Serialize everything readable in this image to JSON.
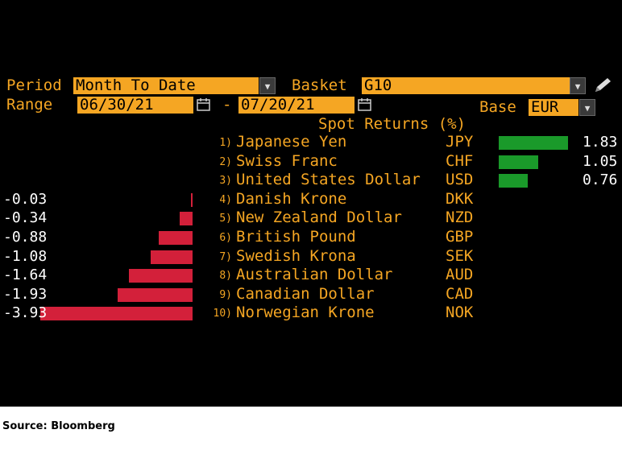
{
  "header": {
    "period_label": "Period",
    "period_value": "Month To Date",
    "basket_label": "Basket",
    "basket_value": "G10",
    "range_label": "Range",
    "range_start": "06/30/21",
    "range_sep": "-",
    "range_end": "07/20/21",
    "base_label": "Base",
    "base_value": "EUR"
  },
  "footer": {
    "source": "Source: Bloomberg"
  },
  "colors": {
    "accent": "#f5a623",
    "positive": "#1a9a2a",
    "negative": "#d3203a"
  },
  "chart_data": {
    "type": "bar",
    "title": "Spot Returns (%)",
    "rows": [
      {
        "rank": "1)",
        "name": "Japanese Yen",
        "code": "JPY",
        "value": 1.83,
        "label": "1.83"
      },
      {
        "rank": "2)",
        "name": "Swiss Franc",
        "code": "CHF",
        "value": 1.05,
        "label": "1.05"
      },
      {
        "rank": "3)",
        "name": "United States Dollar",
        "code": "USD",
        "value": 0.76,
        "label": "0.76"
      },
      {
        "rank": "4)",
        "name": "Danish Krone",
        "code": "DKK",
        "value": -0.03,
        "label": "-0.03"
      },
      {
        "rank": "5)",
        "name": "New Zealand Dollar",
        "code": "NZD",
        "value": -0.34,
        "label": "-0.34"
      },
      {
        "rank": "6)",
        "name": "British Pound",
        "code": "GBP",
        "value": -0.88,
        "label": "-0.88"
      },
      {
        "rank": "7)",
        "name": "Swedish Krona",
        "code": "SEK",
        "value": -1.08,
        "label": "-1.08"
      },
      {
        "rank": "8)",
        "name": "Australian Dollar",
        "code": "AUD",
        "value": -1.64,
        "label": "-1.64"
      },
      {
        "rank": "9)",
        "name": "Canadian Dollar",
        "code": "CAD",
        "value": -1.93,
        "label": "-1.93"
      },
      {
        "rank": "10)",
        "name": "Norwegian Krone",
        "code": "NOK",
        "value": -3.93,
        "label": "-3.93"
      }
    ]
  }
}
